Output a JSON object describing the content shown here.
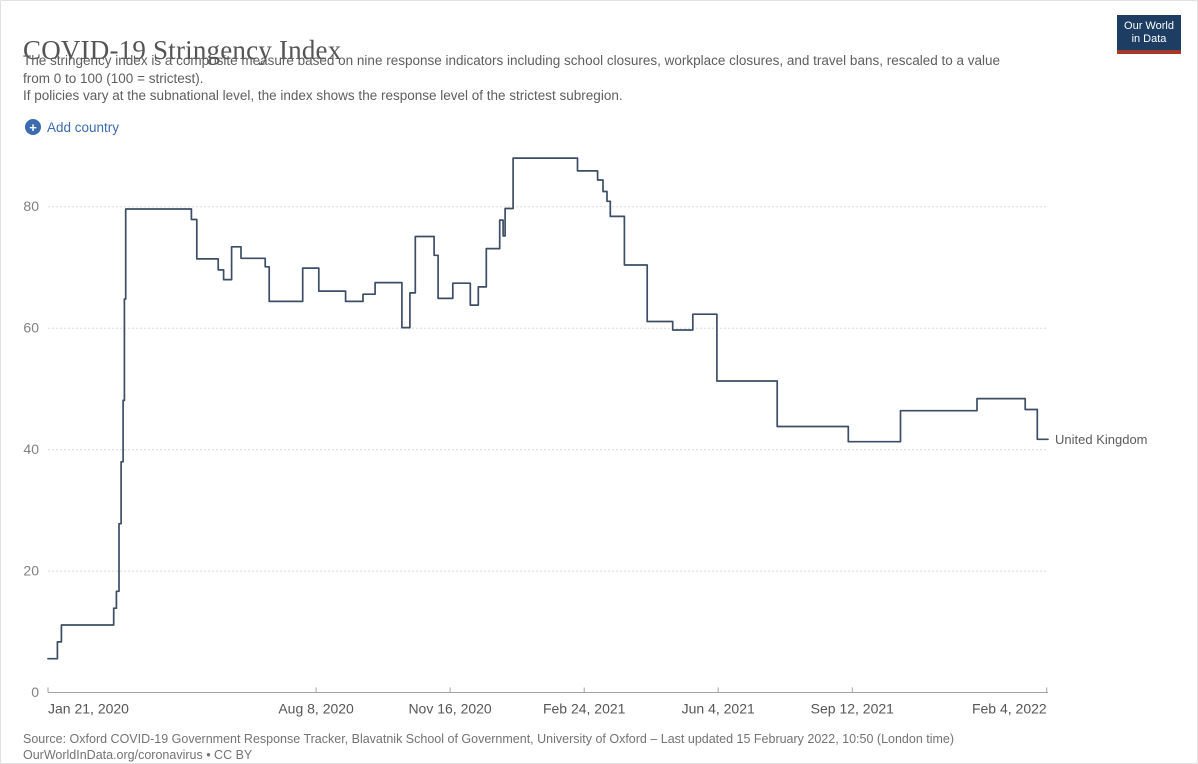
{
  "header": {
    "title": "COVID-19 Stringency Index",
    "subtitle_lines": [
      "The stringency index is a composite measure based on nine response indicators including school closures, workplace closures, and travel bans, rescaled to a value",
      "from 0 to 100 (100 = strictest).",
      "If policies vary at the subnational level, the index shows the response level of the strictest subregion."
    ],
    "add_country_label": "Add country",
    "plus_icon": "+",
    "logo": {
      "line1": "Our World",
      "line2": "in Data"
    }
  },
  "chart_data": {
    "type": "line",
    "title": "COVID-19 Stringency Index",
    "x_unit": "days since 2020-01-21",
    "xlim": [
      0,
      746
    ],
    "ylim": [
      0,
      90
    ],
    "grid": "dashed-horizontal",
    "legend_position": "end-of-line",
    "y_ticks": [
      0,
      20,
      40,
      60,
      80
    ],
    "x_ticks": [
      {
        "day": 0,
        "label": "Jan 21, 2020"
      },
      {
        "day": 200,
        "label": "Aug 8, 2020"
      },
      {
        "day": 300,
        "label": "Nov 16, 2020"
      },
      {
        "day": 400,
        "label": "Feb 24, 2021"
      },
      {
        "day": 500,
        "label": "Jun 4, 2021"
      },
      {
        "day": 600,
        "label": "Sep 12, 2021"
      },
      {
        "day": 745,
        "label": "Feb 4, 2022"
      }
    ],
    "series": [
      {
        "name": "United Kingdom",
        "color": "#3c4e66",
        "step": true,
        "points": [
          [
            0,
            5.56
          ],
          [
            7,
            8.33
          ],
          [
            10,
            11.11
          ],
          [
            49,
            13.89
          ],
          [
            51,
            16.67
          ],
          [
            53,
            27.8
          ],
          [
            54.5,
            38
          ],
          [
            56,
            48.1
          ],
          [
            57,
            64.8
          ],
          [
            58,
            79.63
          ],
          [
            107,
            77.9
          ],
          [
            111,
            71.4
          ],
          [
            127,
            69.6
          ],
          [
            131,
            68.0
          ],
          [
            137,
            73.4
          ],
          [
            144,
            71.5
          ],
          [
            162,
            70.1
          ],
          [
            165,
            64.4
          ],
          [
            190,
            69.9
          ],
          [
            202,
            66.1
          ],
          [
            222,
            64.4
          ],
          [
            235,
            65.6
          ],
          [
            244,
            67.5
          ],
          [
            264,
            60.1
          ],
          [
            270,
            65.8
          ],
          [
            274,
            75.1
          ],
          [
            288,
            72.0
          ],
          [
            291,
            64.9
          ],
          [
            302,
            67.4
          ],
          [
            315,
            63.8
          ],
          [
            321,
            66.8
          ],
          [
            327,
            73.1
          ],
          [
            337,
            77.8
          ],
          [
            339.5,
            75.2
          ],
          [
            341,
            79.7
          ],
          [
            347,
            88.0
          ],
          [
            395,
            85.9
          ],
          [
            410,
            84.4
          ],
          [
            414,
            82.5
          ],
          [
            417,
            80.9
          ],
          [
            419.5,
            78.4
          ],
          [
            430,
            70.4
          ],
          [
            447,
            61.1
          ],
          [
            466,
            59.7
          ],
          [
            481,
            62.3
          ],
          [
            499,
            51.3
          ],
          [
            544,
            43.8
          ],
          [
            597,
            41.3
          ],
          [
            636,
            46.4
          ],
          [
            693,
            48.4
          ],
          [
            729,
            46.6
          ],
          [
            738,
            41.7
          ],
          [
            746,
            41.7
          ]
        ]
      }
    ],
    "end_label": "United Kingdom"
  },
  "footer": {
    "source_line1": "Source: Oxford COVID-19 Government Response Tracker, Blavatnik School of Government, University of Oxford – Last updated 15 February 2022, 10:50 (London time)",
    "source_link": "OurWorldInData.org/coronavirus",
    "source_suffix": "• CC BY"
  },
  "colors": {
    "line": "#3c4e66",
    "accent_blue": "#3b6bb0",
    "grid": "#dcdcdc",
    "axis": "#a3a3a3",
    "y_label": "#828282",
    "x_label": "#565656",
    "end_label": "#5b5b5b",
    "logo_bg": "#1d3d63",
    "logo_stripe": "#a2392a"
  }
}
